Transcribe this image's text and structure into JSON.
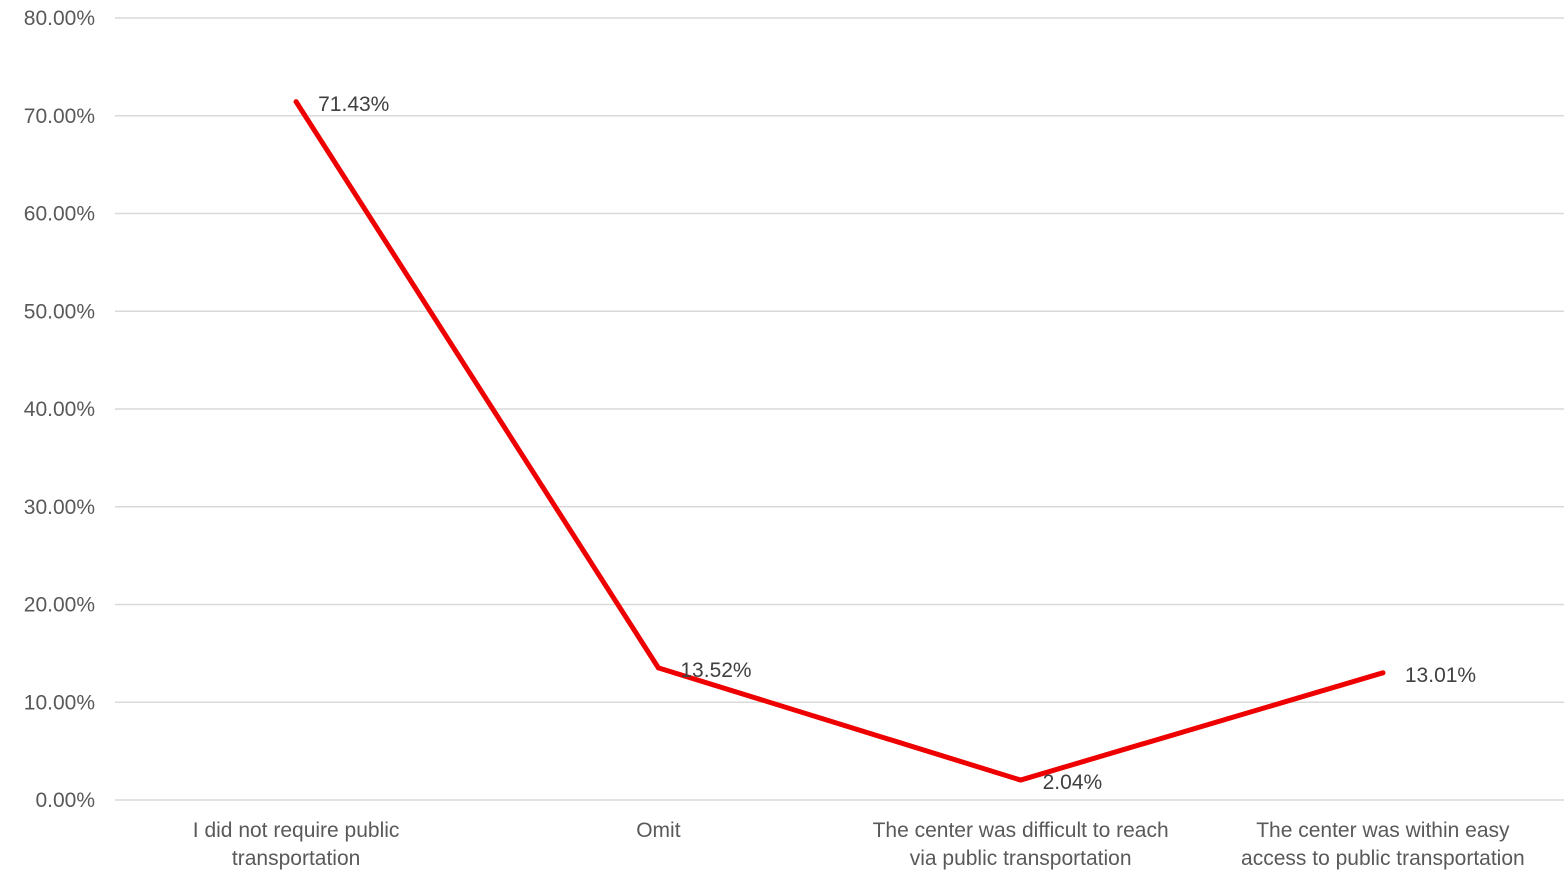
{
  "chart_data": {
    "type": "line",
    "title": "",
    "xlabel": "",
    "ylabel": "",
    "categories": [
      [
        "I did not require public",
        "transportation"
      ],
      [
        "Omit"
      ],
      [
        "The center was difficult to reach",
        "via public transportation"
      ],
      [
        "The center was within easy",
        "access to public transportation"
      ]
    ],
    "series": [
      {
        "values": [
          71.43,
          13.52,
          2.04,
          13.01
        ],
        "labels": [
          "71.43%",
          "13.52%",
          "2.04%",
          "13.01%"
        ],
        "color": "#ee0000"
      }
    ],
    "ylim": [
      0,
      80
    ],
    "yticks": [
      0,
      10,
      20,
      30,
      40,
      50,
      60,
      70,
      80
    ],
    "ytick_labels": [
      "0.00%",
      "10.00%",
      "20.00%",
      "30.00%",
      "40.00%",
      "50.00%",
      "60.00%",
      "70.00%",
      "80.00%"
    ],
    "grid": true,
    "gridline_color": "#d9d9d9",
    "legend": false
  }
}
